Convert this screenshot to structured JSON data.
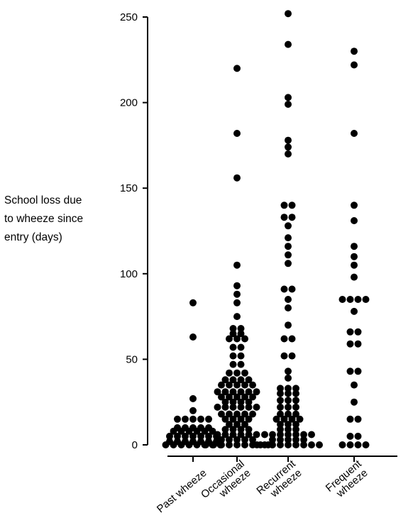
{
  "chart_data": {
    "type": "scatter",
    "subtype": "dot-plot",
    "ylabel_lines": [
      "School loss due",
      "to wheeze since",
      "entry (days)"
    ],
    "xlabel": "",
    "ylim": [
      0,
      250
    ],
    "yticks": [
      0,
      50,
      100,
      150,
      200,
      250
    ],
    "grid": false,
    "legend": "none",
    "colors": {
      "dot": "#000000",
      "axis": "#000000"
    },
    "categories": [
      {
        "lines": [
          "Past wheeze"
        ]
      },
      {
        "lines": [
          "Occasional",
          "wheeze"
        ]
      },
      {
        "lines": [
          "Recurrent",
          "wheeze"
        ]
      },
      {
        "lines": [
          "Frequent",
          "wheeze"
        ]
      }
    ],
    "series": [
      {
        "rows": [
          [
            83
          ],
          [
            63
          ],
          [
            27
          ],
          [
            20
          ],
          [
            15,
            15,
            15,
            15,
            15
          ],
          [
            10,
            10,
            10,
            10,
            10
          ],
          [
            8,
            8,
            8,
            8,
            8,
            8
          ],
          [
            5,
            5,
            5,
            5,
            5,
            5,
            5
          ],
          [
            2,
            2,
            2,
            2,
            2,
            2,
            2
          ],
          [
            0,
            0,
            0,
            0,
            0,
            0,
            0,
            0
          ]
        ]
      },
      {
        "rows": [
          [
            220
          ],
          [
            182
          ],
          [
            156
          ],
          [
            105
          ],
          [
            93
          ],
          [
            88
          ],
          [
            83
          ],
          [
            75
          ],
          [
            68,
            68
          ],
          [
            65,
            65
          ],
          [
            62,
            62,
            62
          ],
          [
            57,
            57
          ],
          [
            52,
            52
          ],
          [
            47,
            47
          ],
          [
            42,
            42,
            42
          ],
          [
            38,
            38,
            38,
            38
          ],
          [
            35,
            35,
            35,
            35,
            35
          ],
          [
            31,
            31,
            31,
            31,
            31,
            31
          ],
          [
            28,
            28,
            28,
            28,
            28
          ],
          [
            25,
            25,
            25,
            25
          ],
          [
            22,
            22,
            22,
            22,
            22,
            22
          ],
          [
            18,
            18,
            18,
            18,
            18
          ],
          [
            15,
            15,
            15,
            15
          ],
          [
            12,
            12,
            12
          ],
          [
            9,
            9,
            9,
            9
          ],
          [
            6,
            6,
            6,
            6,
            6,
            6
          ],
          [
            3,
            3,
            3,
            3,
            3
          ],
          [
            0,
            0,
            0,
            0,
            0,
            0,
            0,
            0,
            0
          ]
        ]
      },
      {
        "rows": [
          [
            252
          ],
          [
            234
          ],
          [
            203
          ],
          [
            199
          ],
          [
            178
          ],
          [
            174
          ],
          [
            170
          ],
          [
            140,
            140
          ],
          [
            133,
            133
          ],
          [
            128
          ],
          [
            121
          ],
          [
            116
          ],
          [
            111
          ],
          [
            106
          ],
          [
            91,
            91
          ],
          [
            85
          ],
          [
            80
          ],
          [
            70
          ],
          [
            62,
            62
          ],
          [
            52,
            52
          ],
          [
            43
          ],
          [
            39
          ],
          [
            33,
            33,
            33
          ],
          [
            30,
            30,
            30
          ],
          [
            26,
            26,
            26
          ],
          [
            22,
            22,
            22
          ],
          [
            18,
            18,
            18
          ],
          [
            15,
            15,
            15,
            15
          ],
          [
            12,
            12,
            12
          ],
          [
            9,
            9,
            9
          ],
          [
            6,
            6,
            6,
            6,
            6,
            6,
            6
          ],
          [
            3,
            3,
            3,
            3,
            3
          ],
          [
            0,
            0,
            0,
            0,
            0,
            0,
            0,
            0,
            0
          ]
        ]
      },
      {
        "rows": [
          [
            230
          ],
          [
            222
          ],
          [
            182
          ],
          [
            140
          ],
          [
            131
          ],
          [
            116
          ],
          [
            110
          ],
          [
            105
          ],
          [
            98
          ],
          [
            85,
            85,
            85,
            85
          ],
          [
            78
          ],
          [
            66,
            66
          ],
          [
            59,
            59
          ],
          [
            43,
            43
          ],
          [
            35
          ],
          [
            25
          ],
          [
            15,
            15
          ],
          [
            5,
            5
          ],
          [
            0,
            0,
            0,
            0
          ]
        ]
      }
    ]
  }
}
